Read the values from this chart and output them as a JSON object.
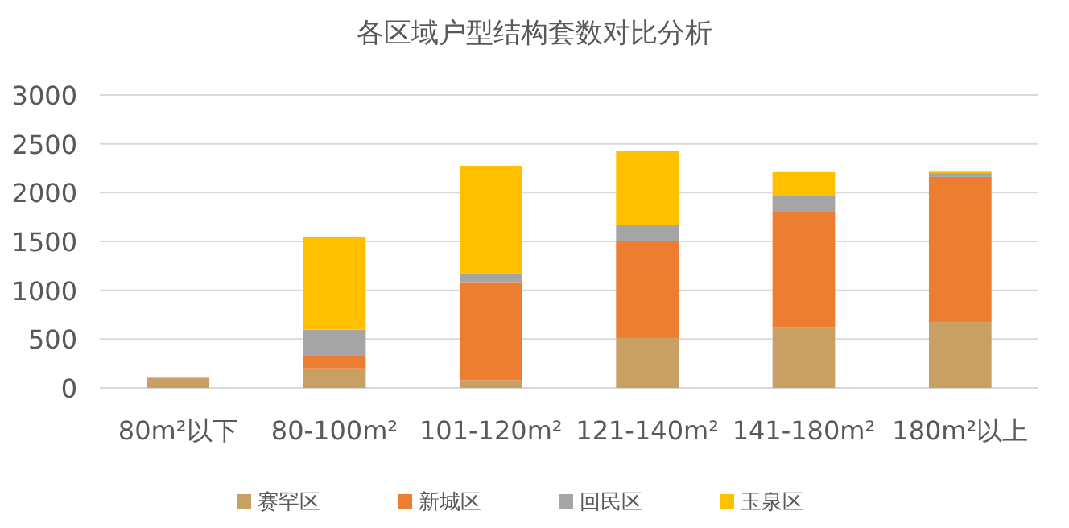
{
  "chart_data": {
    "type": "bar",
    "stacked": true,
    "title": "各区域户型结构套数对比分析",
    "categories": [
      "80m²以下",
      "80-100m²",
      "101-120m²",
      "121-140m²",
      "141-180m²",
      "180m²以上"
    ],
    "series": [
      {
        "name": "赛罕区",
        "color": "#c9a063",
        "values": [
          100,
          200,
          80,
          510,
          625,
          675
        ]
      },
      {
        "name": "新城区",
        "color": "#ed7d31",
        "values": [
          0,
          130,
          1005,
          990,
          1175,
          1485
        ]
      },
      {
        "name": "回民区",
        "color": "#a5a5a5",
        "values": [
          0,
          265,
          90,
          170,
          165,
          40
        ]
      },
      {
        "name": "玉泉区",
        "color": "#ffc000",
        "values": [
          15,
          955,
          1100,
          755,
          245,
          15
        ]
      }
    ],
    "ylim": [
      0,
      3000
    ],
    "yticks": [
      0,
      500,
      1000,
      1500,
      2000,
      2500,
      3000
    ],
    "grid": "y",
    "legend": "bottom"
  }
}
